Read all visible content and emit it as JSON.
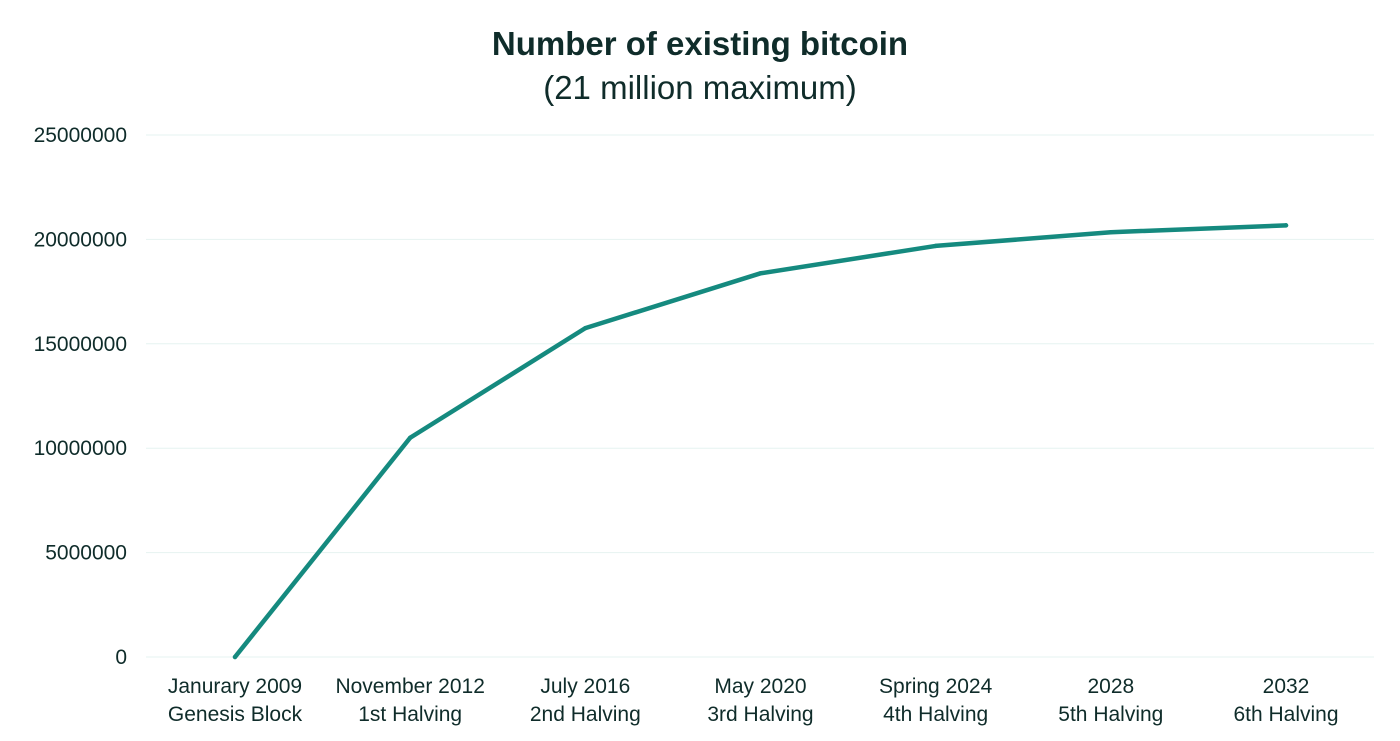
{
  "chart_data": {
    "type": "line",
    "title": "Number of existing bitcoin",
    "subtitle": "(21 million maximum)",
    "xlabel": "",
    "ylabel": "",
    "categories": [
      [
        "Janurary 2009",
        "Genesis Block"
      ],
      [
        "November 2012",
        "1st Halving"
      ],
      [
        "July 2016",
        "2nd Halving"
      ],
      [
        "May 2020",
        "3rd Halving"
      ],
      [
        "Spring 2024",
        "4th Halving"
      ],
      [
        "2028",
        "5th Halving"
      ],
      [
        "2032",
        "6th Halving"
      ]
    ],
    "series": [
      {
        "values": [
          0,
          10500000,
          15750000,
          18375000,
          19687500,
          20343750,
          20671875
        ],
        "color": "#158a7f"
      }
    ],
    "ylim": [
      0,
      25000000
    ],
    "yticks": [
      "0",
      "5000000",
      "10000000",
      "15000000",
      "20000000",
      "25000000"
    ],
    "ytick_values": [
      0,
      5000000,
      10000000,
      15000000,
      20000000,
      25000000
    ],
    "grid": true,
    "grid_color": "#e6f3f1",
    "text_color": "#0f2c2a",
    "legend": "none"
  }
}
